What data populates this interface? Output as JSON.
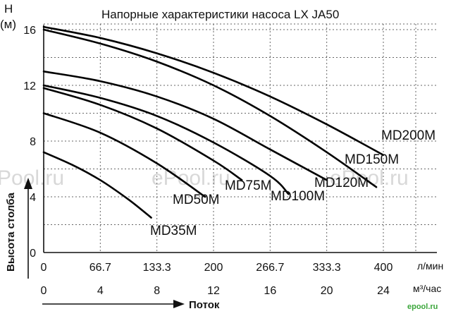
{
  "chart_data": {
    "type": "line",
    "title": "Напорные характеристики насоса LX JA50",
    "y_axis": {
      "symbol": "H",
      "unit": "(м)",
      "label": "Высота столба",
      "ticks": [
        "0",
        "4",
        "8",
        "12",
        "16"
      ],
      "range": [
        0,
        17
      ]
    },
    "x_axis": {
      "label": "Поток",
      "ticks_lpm": [
        "0",
        "66.7",
        "133.3",
        "200",
        "266.7",
        "333.3",
        "400"
      ],
      "unit_lpm": "л/мин",
      "ticks_m3h": [
        "0",
        "4",
        "8",
        "12",
        "16",
        "20",
        "24"
      ],
      "unit_m3h": "м³/час",
      "range_m3h": [
        0,
        24
      ]
    },
    "grid": true,
    "series": [
      {
        "name": "MD200M",
        "x": [
          0,
          4,
          8,
          12,
          16,
          20,
          24
        ],
        "y": [
          16.2,
          15.4,
          14.3,
          12.9,
          11.2,
          9.2,
          7.0
        ]
      },
      {
        "name": "MD150M",
        "x": [
          0,
          4,
          8,
          12,
          16,
          20,
          23.5
        ],
        "y": [
          16.0,
          15.0,
          13.7,
          12.0,
          9.8,
          7.2,
          4.7
        ]
      },
      {
        "name": "MD120M",
        "x": [
          0,
          4,
          8,
          12,
          16,
          20
        ],
        "y": [
          13.0,
          12.3,
          11.2,
          9.6,
          7.4,
          5.2
        ]
      },
      {
        "name": "MD100M",
        "x": [
          0,
          4,
          8,
          12,
          16,
          17.3
        ],
        "y": [
          12.0,
          11.1,
          9.8,
          7.9,
          5.5,
          4.2
        ]
      },
      {
        "name": "MD75M",
        "x": [
          0,
          4,
          8,
          12,
          14
        ],
        "y": [
          11.8,
          10.6,
          8.9,
          6.6,
          5.2
        ]
      },
      {
        "name": "MD50M",
        "x": [
          0,
          4,
          8,
          11.4
        ],
        "y": [
          10.0,
          8.6,
          6.4,
          4.0
        ]
      },
      {
        "name": "MD35M",
        "x": [
          0,
          2,
          4,
          6,
          7.6
        ],
        "y": [
          7.2,
          6.3,
          5.2,
          3.8,
          2.5
        ]
      }
    ]
  },
  "watermarks": [
    "Pool.ru",
    "ePool.ru",
    "ePool.ru"
  ],
  "logo_text": "epool.ru"
}
